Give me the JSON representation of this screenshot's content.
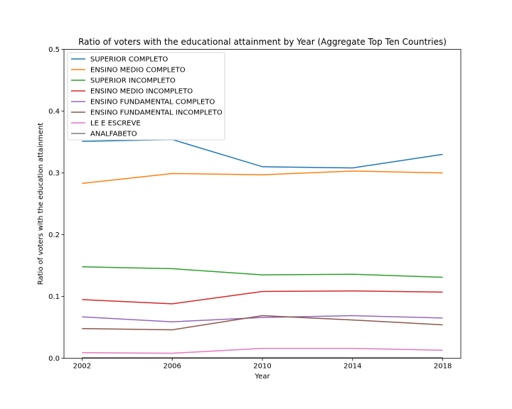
{
  "chart_data": {
    "type": "line",
    "title": "Ratio of voters with the educational attainment by Year (Aggregate Top Ten Countries)",
    "xlabel": "Year",
    "ylabel": "Ratio of voters with the education attainment",
    "x": [
      2002,
      2006,
      2010,
      2014,
      2018
    ],
    "x_ticks": [
      "2002",
      "2006",
      "2010",
      "2014",
      "2018"
    ],
    "xlim": [
      2001.2,
      2018.8
    ],
    "ylim": [
      0.0,
      0.5
    ],
    "y_ticks": [
      "0.0",
      "0.1",
      "0.2",
      "0.3",
      "0.4",
      "0.5"
    ],
    "grid": false,
    "legend_position": "upper-left",
    "series": [
      {
        "name": "SUPERIOR COMPLETO",
        "color": "#1f77b4",
        "values": [
          0.351,
          0.354,
          0.31,
          0.308,
          0.33
        ]
      },
      {
        "name": "ENSINO MEDIO COMPLETO",
        "color": "#ff7f0e",
        "values": [
          0.283,
          0.299,
          0.297,
          0.303,
          0.3
        ]
      },
      {
        "name": "SUPERIOR INCOMPLETO",
        "color": "#2ca02c",
        "values": [
          0.148,
          0.145,
          0.135,
          0.136,
          0.131
        ]
      },
      {
        "name": "ENSINO MEDIO INCOMPLETO",
        "color": "#d62728",
        "values": [
          0.095,
          0.088,
          0.108,
          0.109,
          0.107
        ]
      },
      {
        "name": "ENSINO FUNDAMENTAL COMPLETO",
        "color": "#9467bd",
        "values": [
          0.067,
          0.059,
          0.066,
          0.069,
          0.065
        ]
      },
      {
        "name": "ENSINO FUNDAMENTAL INCOMPLETO",
        "color": "#8c564b",
        "values": [
          0.048,
          0.046,
          0.069,
          0.062,
          0.054
        ]
      },
      {
        "name": "LE E ESCREVE",
        "color": "#e377c2",
        "values": [
          0.009,
          0.008,
          0.016,
          0.016,
          0.013
        ]
      },
      {
        "name": "ANALFABETO",
        "color": "#7f7f7f",
        "values": [
          0.001,
          0.001,
          0.001,
          0.001,
          0.001
        ]
      }
    ]
  }
}
